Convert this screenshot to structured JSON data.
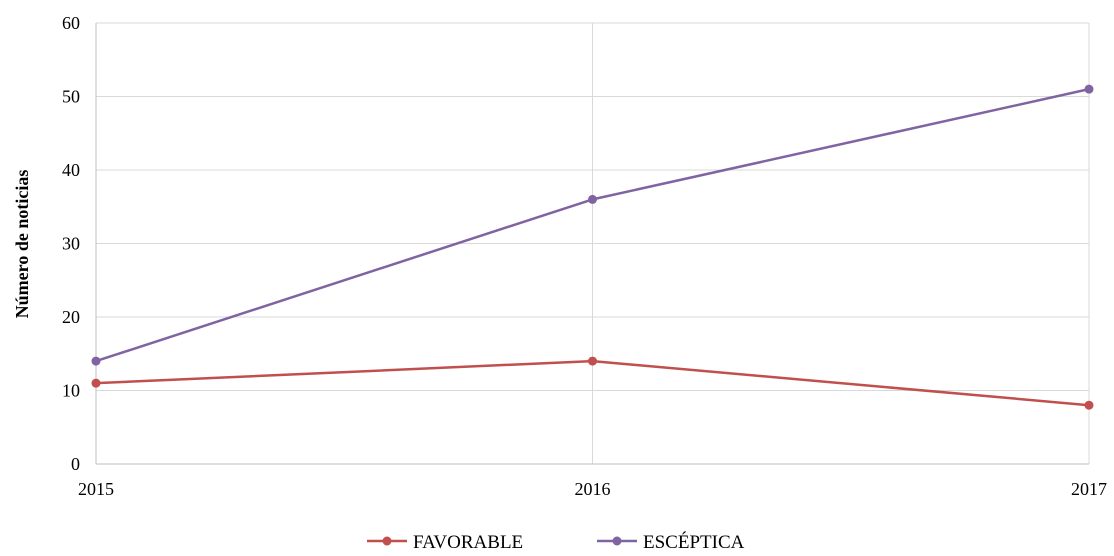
{
  "chart_data": {
    "type": "line",
    "title": "",
    "xlabel": "",
    "ylabel": "Número de noticias",
    "x": [
      "2015",
      "2016",
      "2017"
    ],
    "ylim": [
      0,
      60
    ],
    "yticks": [
      0,
      10,
      20,
      30,
      40,
      50,
      60
    ],
    "grid": true,
    "legend_position": "bottom",
    "series": [
      {
        "name": "FAVORABLE",
        "color": "#c0504d",
        "values": [
          11,
          14,
          8
        ]
      },
      {
        "name": "ESCÉPTICA",
        "color": "#8064a2",
        "values": [
          14,
          36,
          51
        ]
      }
    ]
  }
}
